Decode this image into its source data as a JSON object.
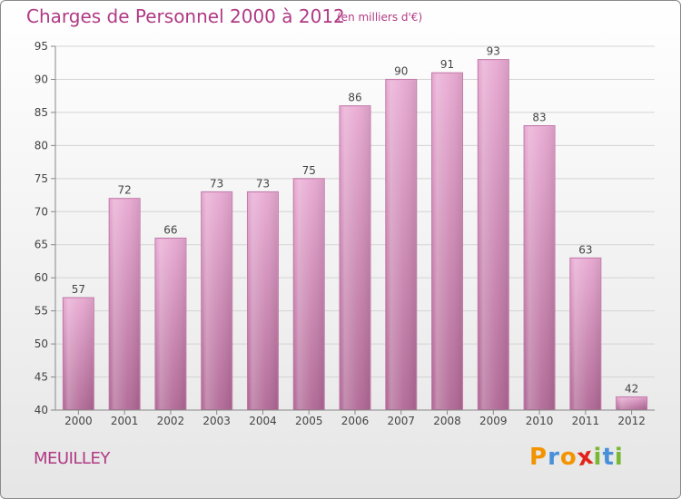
{
  "title": "Charges de Personnel 2000 à 2012",
  "unit": "(en milliers d'€)",
  "place": "MEUILLEY",
  "logo": {
    "text": "Proxiti",
    "letters": [
      {
        "char": "P",
        "color": "#f29400"
      },
      {
        "char": "r",
        "color": "#4a90d9"
      },
      {
        "char": "o",
        "color": "#f29400"
      },
      {
        "char": "x",
        "color": "#e2231a"
      },
      {
        "char": "i",
        "color": "#78b833"
      },
      {
        "char": "t",
        "color": "#4a90d9"
      },
      {
        "char": "i",
        "color": "#78b833"
      }
    ]
  },
  "colors": {
    "bar_top": "#e8a9d2",
    "bar_bottom": "#b06895",
    "accent": "#b03a84"
  },
  "chart_data": {
    "type": "bar",
    "categories": [
      "2000",
      "2001",
      "2002",
      "2003",
      "2004",
      "2005",
      "2006",
      "2007",
      "2008",
      "2009",
      "2010",
      "2011",
      "2012"
    ],
    "values": [
      57,
      72,
      66,
      73,
      73,
      75,
      86,
      90,
      91,
      93,
      83,
      63,
      42
    ],
    "title": "Charges de Personnel 2000 à 2012",
    "xlabel": "",
    "ylabel": "",
    "ylim": [
      40,
      95
    ],
    "yticks": [
      40,
      45,
      50,
      55,
      60,
      65,
      70,
      75,
      80,
      85,
      90,
      95
    ],
    "grid": true,
    "legend": "none"
  }
}
